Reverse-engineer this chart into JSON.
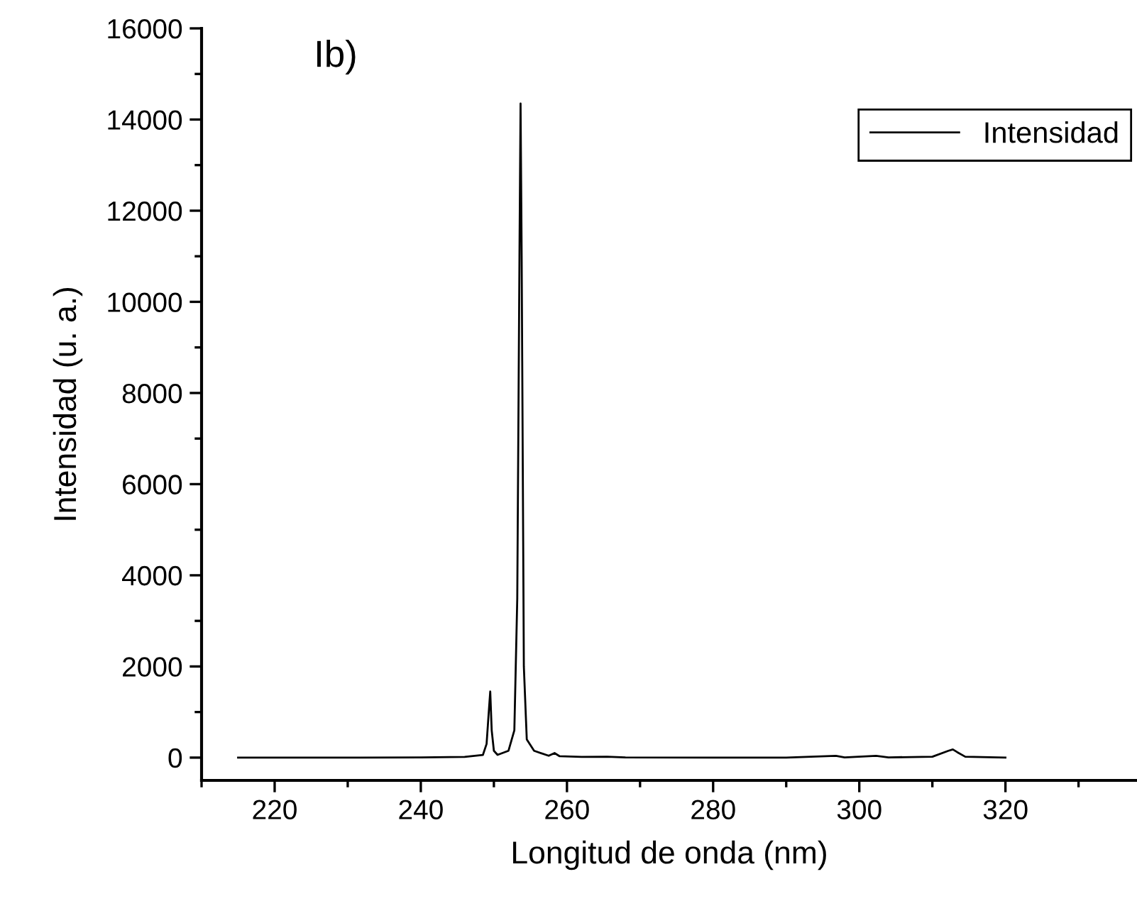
{
  "chart_data": {
    "type": "line",
    "title": "Ib)",
    "xlabel": "Longitud de onda (nm)",
    "ylabel": "Intensidad (u. a.)",
    "series": [
      {
        "name": "Intensidad",
        "color": "#000000",
        "x": [
          215,
          230,
          240,
          246,
          248.5,
          249.0,
          249.3,
          249.5,
          249.7,
          250.0,
          250.5,
          252.0,
          252.8,
          253.2,
          253.5,
          253.65,
          253.8,
          254.1,
          254.5,
          255.5,
          257.5,
          258.3,
          259.0,
          262,
          265.5,
          268,
          280,
          290,
          296.8,
          298,
          302.3,
          304,
          310,
          312.2,
          312.8,
          313.4,
          314.5,
          320
        ],
        "values": [
          0,
          0,
          5,
          15,
          60,
          300,
          1000,
          1450,
          600,
          150,
          60,
          150,
          600,
          3500,
          11000,
          14350,
          11000,
          2000,
          400,
          150,
          40,
          100,
          30,
          15,
          20,
          5,
          0,
          0,
          40,
          5,
          40,
          5,
          20,
          150,
          180,
          120,
          20,
          0
        ]
      }
    ],
    "xlim": [
      210,
      338
    ],
    "xticks": [
      220,
      240,
      260,
      280,
      300,
      320
    ],
    "ylim": [
      -500,
      16000
    ],
    "yticks": [
      0,
      2000,
      4000,
      6000,
      8000,
      10000,
      12000,
      14000,
      16000
    ],
    "legend": "top right",
    "grid": false,
    "marker": "none",
    "line_style": "solid"
  }
}
